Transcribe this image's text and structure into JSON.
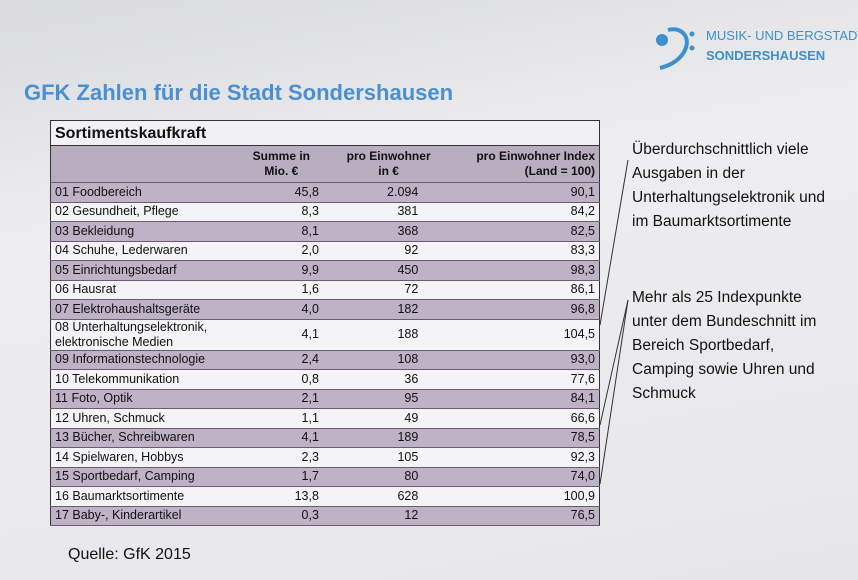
{
  "header": {
    "title": "GFK Zahlen für die Stadt Sondershausen",
    "logo_lines": [
      "MUSIK- UND BERGSTADT",
      "SONDERSHAUSEN"
    ]
  },
  "table": {
    "title": "Sortimentskaufkraft",
    "columns": [
      [
        "Summe in",
        "Mio. €"
      ],
      [
        "pro Einwohner",
        "in €"
      ],
      [
        "pro Einwohner Index",
        "(Land = 100)"
      ]
    ],
    "rows": [
      [
        [
          "01 Foodbereich"
        ],
        "45,8",
        "2.094",
        "90,1"
      ],
      [
        [
          "02 Gesundheit,  Pflege"
        ],
        "8,3",
        "381",
        "84,2"
      ],
      [
        [
          "03 Bekleidung"
        ],
        "8,1",
        "368",
        "82,5"
      ],
      [
        [
          "04 Schuhe, Lederwaren"
        ],
        "2,0",
        "92",
        "83,3"
      ],
      [
        [
          "05 Einrichtungsbedarf"
        ],
        "9,9",
        "450",
        "98,3"
      ],
      [
        [
          "06 Hausrat"
        ],
        "1,6",
        "72",
        "86,1"
      ],
      [
        [
          "07 Elektrohaushaltsgeräte"
        ],
        "4,0",
        "182",
        "96,8"
      ],
      [
        [
          "08 Unterhaltungselektronik,",
          "elektronische Medien"
        ],
        "4,1",
        "188",
        "104,5"
      ],
      [
        [
          "09 Informationstechnologie"
        ],
        "2,4",
        "108",
        "93,0"
      ],
      [
        [
          "10 Telekommunikation"
        ],
        "0,8",
        "36",
        "77,6"
      ],
      [
        [
          "11 Foto,  Optik"
        ],
        "2,1",
        "95",
        "84,1"
      ],
      [
        [
          "12 Uhren,  Schmuck"
        ],
        "1,1",
        "49",
        "66,6"
      ],
      [
        [
          "13 Bücher, Schreibwaren"
        ],
        "4,1",
        "189",
        "78,5"
      ],
      [
        [
          "14 Spielwaren,  Hobbys"
        ],
        "2,3",
        "105",
        "92,3"
      ],
      [
        [
          "15 Sportbedarf,  Camping"
        ],
        "1,7",
        "80",
        "74,0"
      ],
      [
        [
          "16 Baumarktsortimente"
        ],
        "13,8",
        "628",
        "100,9"
      ],
      [
        [
          "17 Baby-,  Kinderartikel"
        ],
        "0,3",
        "12",
        "76,5"
      ]
    ]
  },
  "notes": [
    "Überdurchschnittlich viele Ausgaben in der Unterhaltungselektronik und im Baumarktsortimente",
    "Mehr als 25 Indexpunkte unter dem Bundeschnitt im Bereich Sportbedarf, Camping sowie Uhren und Schmuck"
  ],
  "source": "Quelle: GfK 2015"
}
